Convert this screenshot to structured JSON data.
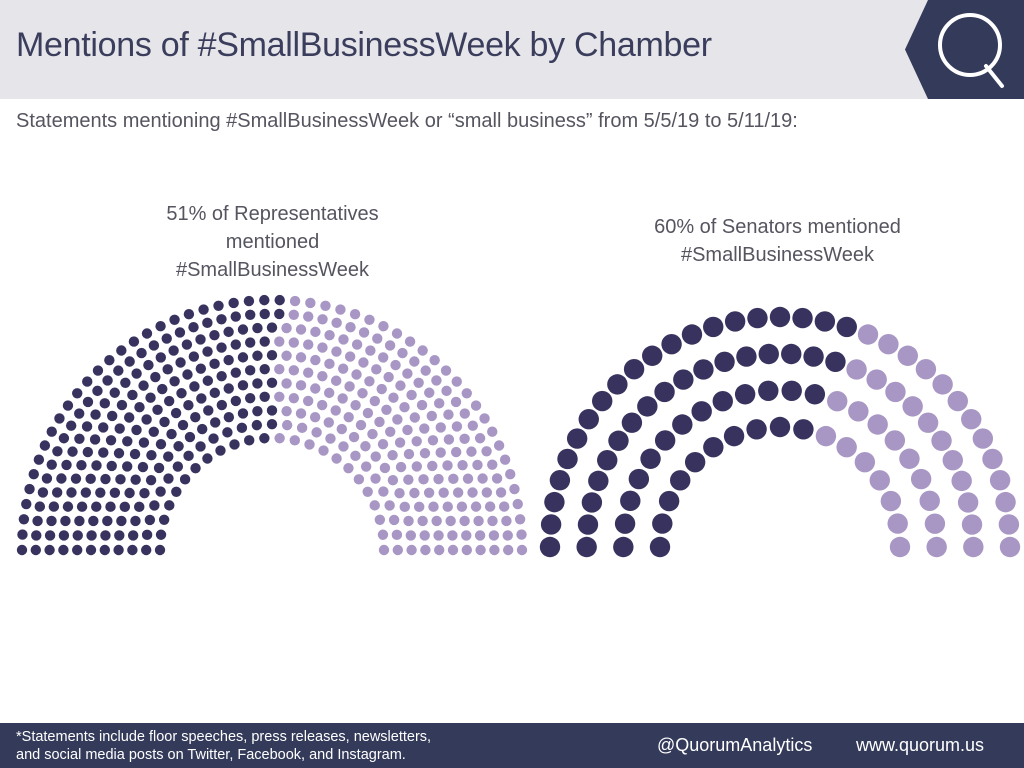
{
  "header": {
    "title": "Mentions of #SmallBusinessWeek by Chamber",
    "logo_letter": "Q"
  },
  "subtitle": "Statements mentioning #SmallBusinessWeek or “small business” from 5/5/19 to 5/11/19:",
  "footer": {
    "note_line1": "*Statements include floor speeches, press releases, newsletters,",
    "note_line2": "and social media posts on Twitter, Facebook, and Instagram.",
    "handle": "@QuorumAnalytics",
    "url": "www.quorum.us"
  },
  "colors": {
    "mentioned": "#37335e",
    "not_mentioned": "#a897c4",
    "footer_bg": "#343a59",
    "header_bg": "#e6e6ea",
    "logo_bg": "#343a59"
  },
  "chart_data": [
    {
      "type": "parliament",
      "chamber": "House",
      "caption_line1": "51% of Representatives",
      "caption_line2": "mentioned",
      "caption_line3": "#SmallBusinessWeek",
      "mentioned_pct": 51,
      "rows": 11,
      "seats_total": 435
    },
    {
      "type": "parliament",
      "chamber": "Senate",
      "caption_line1": "60% of Senators mentioned",
      "caption_line2": "#SmallBusinessWeek",
      "mentioned_pct": 60,
      "rows": 4,
      "seats_total": 100
    }
  ]
}
